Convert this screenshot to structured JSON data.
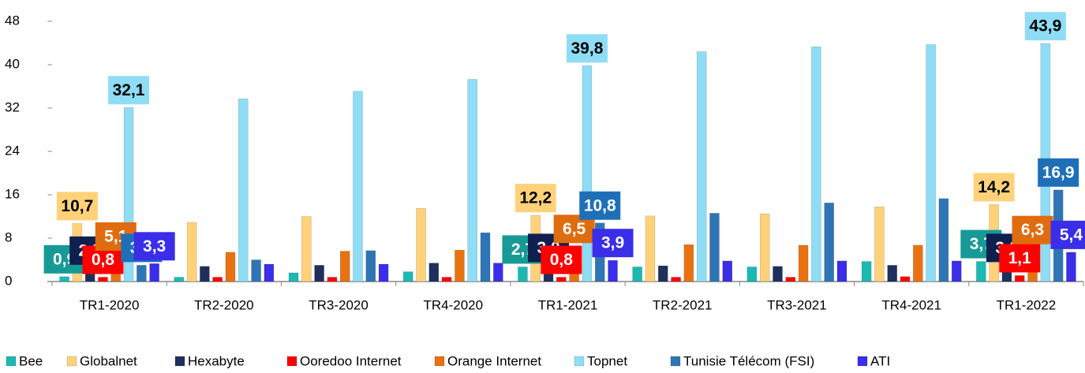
{
  "chart_data": {
    "type": "bar",
    "categories": [
      "TR1-2020",
      "TR2-2020",
      "TR3-2020",
      "TR4-2020",
      "TR1-2021",
      "TR2-2021",
      "TR3-2021",
      "TR4-2021",
      "TR1-2022"
    ],
    "ylim": [
      0,
      48
    ],
    "yticks": [
      0,
      8,
      16,
      24,
      32,
      40,
      48
    ],
    "legend": "bottom",
    "series": [
      {
        "name": "Bee",
        "color": "#1cb8b2",
        "label_color": "#179a96",
        "values": [
          0.9,
          0.8,
          1.6,
          1.8,
          2.7,
          2.7,
          2.7,
          3.7,
          3.7
        ],
        "value_labels": [
          "0,9",
          null,
          null,
          null,
          "2,7",
          null,
          null,
          null,
          "3,7"
        ]
      },
      {
        "name": "Globalnet",
        "color": "#ffd27a",
        "label_color": "#ffd27a",
        "values": [
          10.7,
          10.9,
          12.0,
          13.5,
          12.2,
          12.1,
          12.5,
          13.8,
          14.2
        ],
        "value_labels": [
          "10,7",
          null,
          null,
          null,
          "12,2",
          null,
          null,
          null,
          "14,2"
        ]
      },
      {
        "name": "Hexabyte",
        "color": "#1f2f5c",
        "label_color": "#0f1f4f",
        "values": [
          2.5,
          2.8,
          3.0,
          3.4,
          3.0,
          2.9,
          2.8,
          3.0,
          3.0
        ],
        "value_labels": [
          "2,5",
          null,
          null,
          null,
          "3,0",
          null,
          null,
          null,
          "3,0"
        ]
      },
      {
        "name": "Ooredoo Internet",
        "color": "#ff0000",
        "label_color": "#ff0000",
        "values": [
          0.8,
          0.8,
          0.8,
          0.8,
          0.8,
          0.8,
          0.8,
          0.9,
          1.1
        ],
        "value_labels": [
          "0,8",
          null,
          null,
          null,
          "0,8",
          null,
          null,
          null,
          "1,1"
        ]
      },
      {
        "name": "Orange Internet",
        "color": "#e87212",
        "label_color": "#e06c10",
        "values": [
          5.1,
          5.4,
          5.6,
          5.8,
          6.5,
          6.8,
          6.7,
          6.7,
          6.3
        ],
        "value_labels": [
          "5,1",
          null,
          null,
          null,
          "6,5",
          null,
          null,
          null,
          "6,3"
        ]
      },
      {
        "name": "Topnet",
        "color": "#8fdcf5",
        "label_color": "#8fdcf5",
        "values": [
          32.1,
          33.7,
          35.1,
          37.3,
          39.8,
          42.4,
          43.3,
          43.7,
          43.9
        ],
        "value_labels": [
          "32,1",
          null,
          null,
          null,
          "39,8",
          null,
          null,
          null,
          "43,9"
        ]
      },
      {
        "name": "Tunisie Télécom (FSI)",
        "color": "#2e75b6",
        "label_color": "#1f6fb8",
        "values": [
          3.0,
          4.0,
          5.7,
          9.0,
          10.8,
          12.6,
          14.5,
          15.3,
          16.9
        ],
        "value_labels": [
          "3,0",
          null,
          null,
          null,
          "10,8",
          null,
          null,
          null,
          "16,9"
        ]
      },
      {
        "name": "ATI",
        "color": "#3a2ee8",
        "label_color": "#3a2ee8",
        "values": [
          3.3,
          3.2,
          3.2,
          3.4,
          3.9,
          3.8,
          3.8,
          3.8,
          5.4
        ],
        "value_labels": [
          "3,3",
          null,
          null,
          null,
          "3,9",
          null,
          null,
          null,
          "5,4"
        ]
      }
    ]
  }
}
